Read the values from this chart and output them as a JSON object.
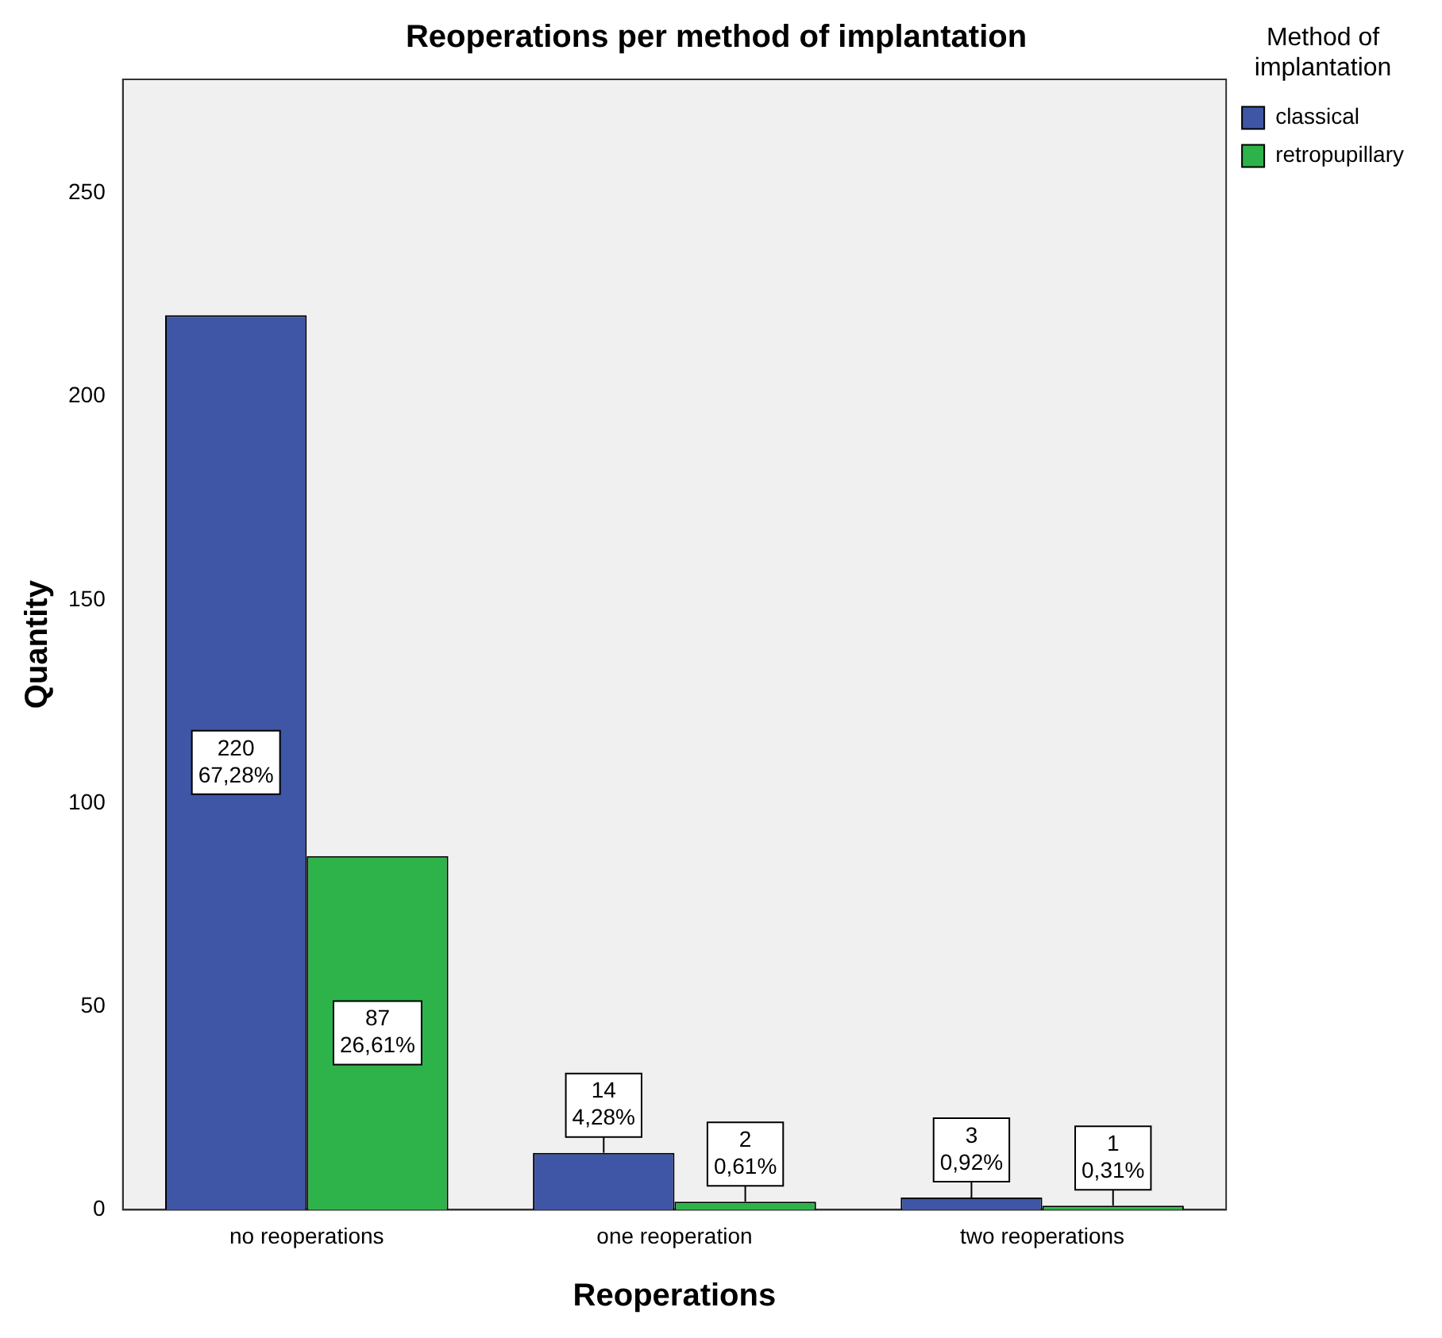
{
  "chart_data": {
    "type": "bar",
    "title": "Reoperations per method of implantation",
    "xlabel": "Reoperations",
    "ylabel": "Quantity",
    "legend_title": "Method of implantation",
    "categories": [
      "no reoperations",
      "one reoperation",
      "two reoperations"
    ],
    "series": [
      {
        "name": "classical",
        "color": "#3f56a6",
        "values": [
          220,
          14,
          3
        ],
        "value_labels": [
          "220\n67,28%",
          "14\n4,28%",
          "3\n0,92%"
        ]
      },
      {
        "name": "retropupillary",
        "color": "#2db34a",
        "values": [
          87,
          2,
          1
        ],
        "value_labels": [
          "87\n26,61%",
          "2\n0,61%",
          "1\n0,31%"
        ]
      }
    ],
    "ylim": [
      0,
      278
    ],
    "yticks": [
      0,
      50,
      100,
      150,
      200,
      250
    ],
    "grid": false,
    "legend": "top right"
  }
}
